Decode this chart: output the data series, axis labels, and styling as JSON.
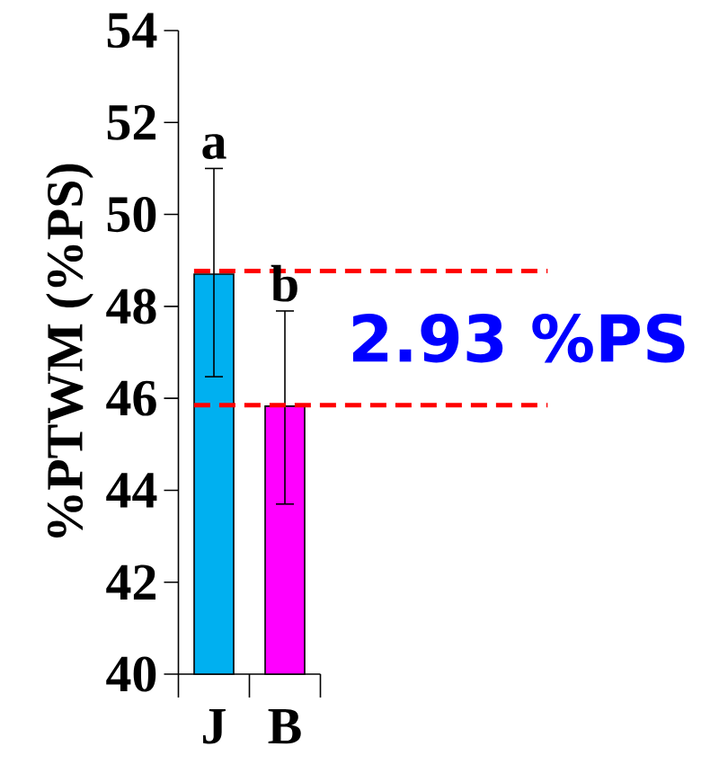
{
  "chart_data": {
    "type": "bar",
    "ylabel": "%PTWM (%PS)",
    "categories": [
      "J",
      "B"
    ],
    "values": [
      48.7,
      45.83
    ],
    "colors": [
      "#00b0f0",
      "#ff00ff"
    ],
    "errors": [
      [
        46.47,
        51.0
      ],
      [
        43.7,
        47.9
      ]
    ],
    "ylim": [
      40,
      54
    ],
    "yticks": [
      40,
      42,
      44,
      46,
      48,
      50,
      52,
      54
    ],
    "ref_lines": [
      {
        "axis": "y",
        "value": 48.77,
        "color": "#ff0000",
        "line_style": "dashed"
      },
      {
        "axis": "y",
        "value": 45.85,
        "color": "#ff0000",
        "line_style": "dashed"
      }
    ],
    "annotations": [
      "a",
      "b",
      "2.93 %PS"
    ]
  }
}
